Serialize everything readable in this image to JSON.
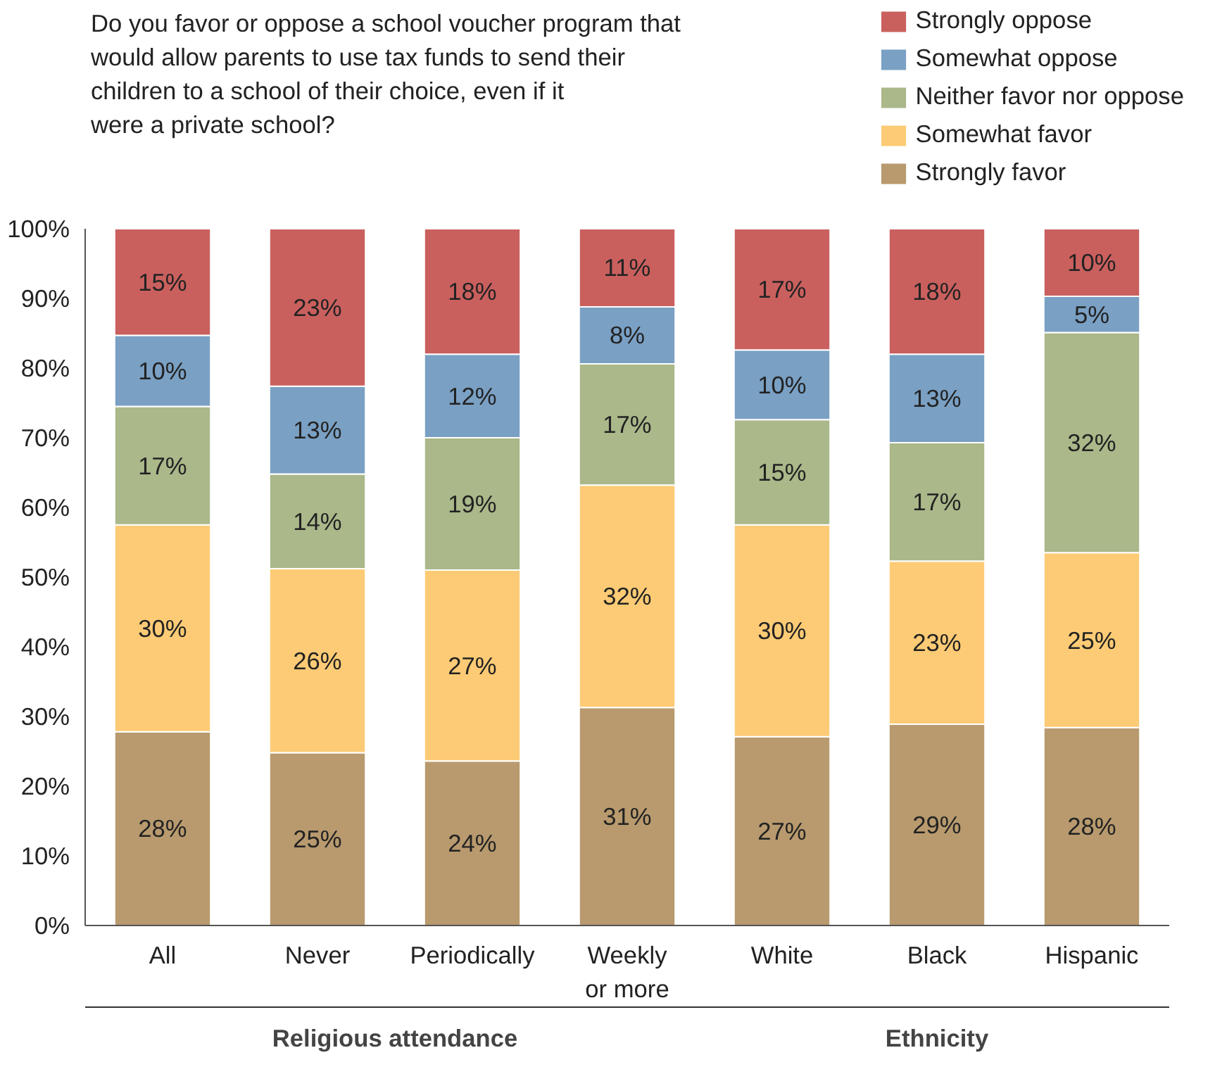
{
  "chart_data": {
    "type": "bar",
    "stacked": true,
    "title": "Do you favor or oppose a school voucher program that would allow parents to use tax funds to send their children to a school of their choice, even if it were a private school?",
    "categories": [
      "All",
      "Never",
      "Periodically",
      "Weekly\nor more",
      "White",
      "Black",
      "Hispanic"
    ],
    "series": [
      {
        "name": "Strongly favor",
        "color": "#b89a6e",
        "values": [
          27.8,
          24.8,
          23.6,
          31.3,
          27.1,
          28.9,
          28.4
        ],
        "value_labels": [
          "28%",
          "25%",
          "24%",
          "31%",
          "27%",
          "29%",
          "28%"
        ]
      },
      {
        "name": "Somewhat favor",
        "color": "#fdcb75",
        "values": [
          29.7,
          26.4,
          27.4,
          31.9,
          30.4,
          23.4,
          25.1
        ],
        "value_labels": [
          "30%",
          "26%",
          "27%",
          "32%",
          "30%",
          "23%",
          "25%"
        ]
      },
      {
        "name": "Neither favor nor oppose",
        "color": "#aab88a",
        "values": [
          17.0,
          13.6,
          19.0,
          17.4,
          15.1,
          17.0,
          31.6
        ],
        "value_labels": [
          "17%",
          "14%",
          "19%",
          "17%",
          "15%",
          "17%",
          "32%"
        ]
      },
      {
        "name": "Somewhat oppose",
        "color": "#7aa0c4",
        "values": [
          10.2,
          12.6,
          12.0,
          8.2,
          10.0,
          12.7,
          5.2
        ],
        "value_labels": [
          "10%",
          "13%",
          "12%",
          "8%",
          "10%",
          "13%",
          "5%"
        ]
      },
      {
        "name": "Strongly oppose",
        "color": "#c9605e",
        "values": [
          15.3,
          22.6,
          18.0,
          11.2,
          17.4,
          18.0,
          9.7
        ],
        "value_labels": [
          "15%",
          "23%",
          "18%",
          "11%",
          "17%",
          "18%",
          "10%"
        ]
      }
    ],
    "ylim": [
      0,
      100
    ],
    "yticks": [
      {
        "value": 0,
        "label": "0%"
      },
      {
        "value": 10,
        "label": "10%"
      },
      {
        "value": 20,
        "label": "20%"
      },
      {
        "value": 30,
        "label": "30%"
      },
      {
        "value": 40,
        "label": "40%"
      },
      {
        "value": 50,
        "label": "50%"
      },
      {
        "value": 60,
        "label": "60%"
      },
      {
        "value": 70,
        "label": "70%"
      },
      {
        "value": 80,
        "label": "80%"
      },
      {
        "value": 90,
        "label": "90%"
      },
      {
        "value": 100,
        "label": "100%"
      }
    ],
    "grid": false,
    "legend": "top right",
    "annotations": [
      "Religious attendance",
      "Ethnicity"
    ]
  }
}
